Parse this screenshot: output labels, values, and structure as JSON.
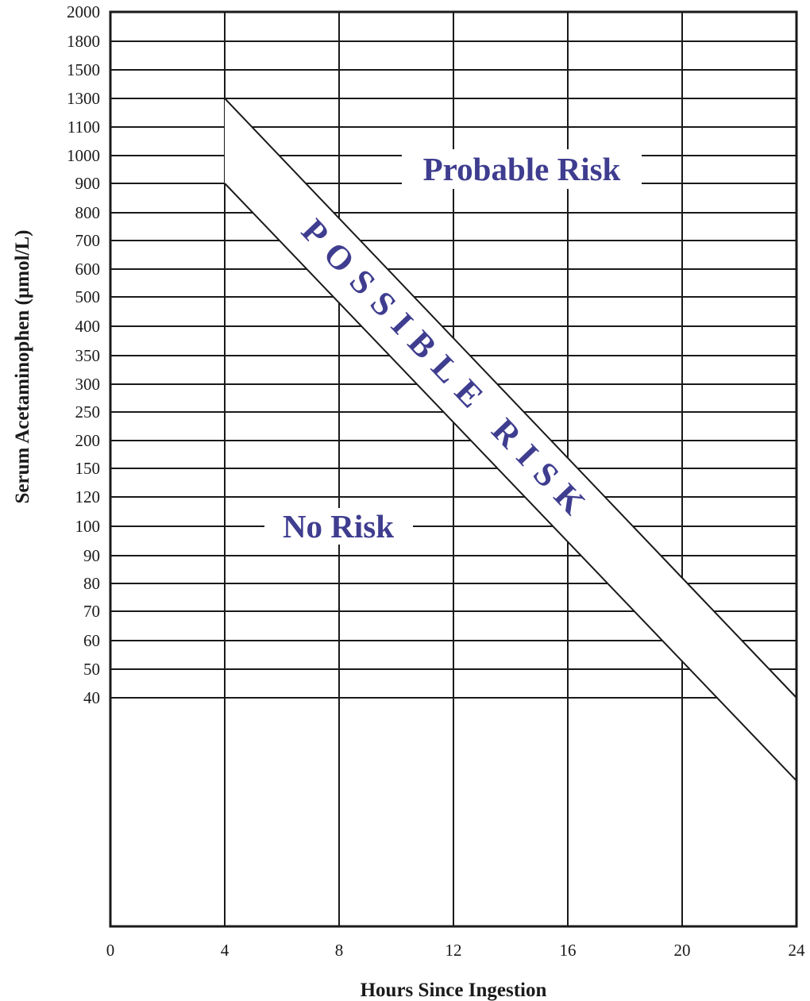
{
  "chart_data": {
    "type": "line",
    "xlabel": "Hours Since Ingestion",
    "ylabel": "Serum Acetaminophen (µmol/L)",
    "x_ticks": [
      0,
      4,
      8,
      12,
      16,
      20,
      24
    ],
    "xlim": [
      0,
      24
    ],
    "y_ticks": [
      "2000",
      "1800",
      "1500",
      "1300",
      "1100",
      "1000",
      "900",
      "800",
      "700",
      "600",
      "500",
      "400",
      "350",
      "300",
      "250",
      "200",
      "150",
      "120",
      "100",
      "90",
      "80",
      "70",
      "60",
      "50",
      "40"
    ],
    "grid": true,
    "series": [
      {
        "x": [
          4,
          24
        ],
        "y": [
          1300,
          40
        ]
      },
      {
        "x": [
          4,
          24
        ],
        "y": [
          900,
          27
        ]
      }
    ],
    "annotations": [
      {
        "text": "Probable Risk"
      },
      {
        "text": "POSSIBLE RISK"
      },
      {
        "text": "No Risk"
      }
    ],
    "colors": {
      "annotation": "#3f3d8f",
      "line": "#1a1a1a"
    }
  }
}
